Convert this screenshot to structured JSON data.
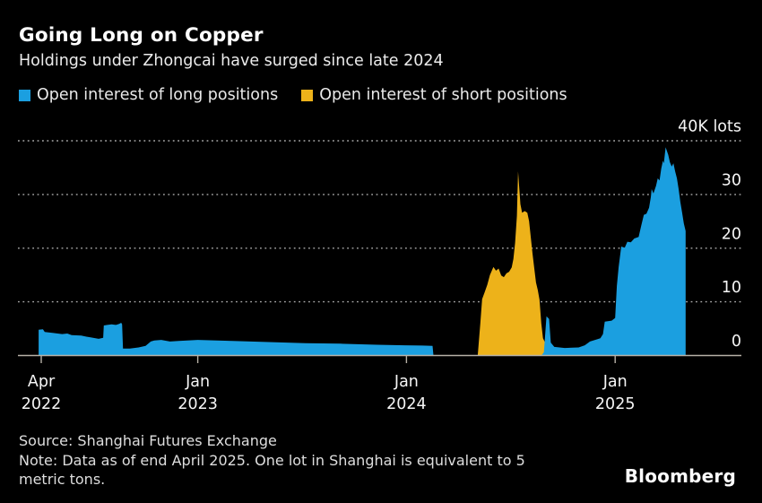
{
  "header": {
    "title": "Going Long on Copper",
    "subtitle": "Holdings under Zhongcai have surged since late 2024"
  },
  "legend": [
    {
      "label": "Open interest of long positions",
      "color": "#1b9fe0"
    },
    {
      "label": "Open interest of short positions",
      "color": "#edb21a"
    }
  ],
  "footer": {
    "source": "Source: Shanghai Futures Exchange",
    "note_line1": "Note: Data as of end April 2025. One lot in Shanghai is equivalent to 5",
    "note_line2": "metric tons.",
    "brand": "Bloomberg"
  },
  "colors": {
    "background": "#000000",
    "long": "#1b9fe0",
    "short": "#edb21a",
    "grid": "#a9a9a9",
    "axis": "#b7b1a7",
    "label_text": "#f5f5f5"
  },
  "chart_data": {
    "type": "area",
    "title": "Going Long on Copper",
    "subtitle": "Holdings under Zhongcai have surged since late 2024",
    "unit": "K lots",
    "x_unit": "months since Apr 2022",
    "ylim": [
      0,
      40
    ],
    "grid": "horizontal-dotted",
    "legend_position": "top-left",
    "y_ticks": [
      {
        "v": 40,
        "label": "40K lots"
      },
      {
        "v": 30,
        "label": "30"
      },
      {
        "v": 20,
        "label": "20"
      },
      {
        "v": 10,
        "label": "10"
      },
      {
        "v": 0,
        "label": "0"
      }
    ],
    "x_ticks": [
      {
        "m": 0,
        "line1": "Apr",
        "line2": "2022"
      },
      {
        "m": 9,
        "line1": "Jan",
        "line2": "2023"
      },
      {
        "m": 21,
        "line1": "Jan",
        "line2": "2024"
      },
      {
        "m": 33,
        "line1": "Jan",
        "line2": "2025"
      }
    ],
    "series": [
      {
        "name": "Open interest of long positions",
        "color": "#1b9fe0",
        "points": [
          [
            -0.15,
            0
          ],
          [
            -0.15,
            4.8
          ],
          [
            0.1,
            4.9
          ],
          [
            0.2,
            4.4
          ],
          [
            0.7,
            4.2
          ],
          [
            1.2,
            4.0
          ],
          [
            1.5,
            4.1
          ],
          [
            1.75,
            3.8
          ],
          [
            2.3,
            3.7
          ],
          [
            2.6,
            3.5
          ],
          [
            2.8,
            3.4
          ],
          [
            3.3,
            3.1
          ],
          [
            3.45,
            3.2
          ],
          [
            3.56,
            3.3
          ],
          [
            3.6,
            5.6
          ],
          [
            3.8,
            5.7
          ],
          [
            4.05,
            5.8
          ],
          [
            4.3,
            5.7
          ],
          [
            4.48,
            5.9
          ],
          [
            4.6,
            6.1
          ],
          [
            4.65,
            5.8
          ],
          [
            4.7,
            1.3
          ],
          [
            5.1,
            1.3
          ],
          [
            5.6,
            1.5
          ],
          [
            6.0,
            1.8
          ],
          [
            6.3,
            2.6
          ],
          [
            6.5,
            2.8
          ],
          [
            6.9,
            2.9
          ],
          [
            7.4,
            2.6
          ],
          [
            7.9,
            2.7
          ],
          [
            9.0,
            2.9
          ],
          [
            11.0,
            2.7
          ],
          [
            13.1,
            2.5
          ],
          [
            15.2,
            2.3
          ],
          [
            17.2,
            2.2
          ],
          [
            19.3,
            2.0
          ],
          [
            20.9,
            1.9
          ],
          [
            21.9,
            1.85
          ],
          [
            22.5,
            1.8
          ],
          [
            22.55,
            0
          ],
          [
            28.76,
            0
          ],
          [
            28.9,
            0.6
          ],
          [
            29.05,
            7.3
          ],
          [
            29.2,
            6.8
          ],
          [
            29.3,
            2.4
          ],
          [
            29.5,
            1.6
          ],
          [
            30.1,
            1.4
          ],
          [
            30.9,
            1.5
          ],
          [
            31.25,
            1.9
          ],
          [
            31.55,
            2.6
          ],
          [
            31.95,
            3.0
          ],
          [
            32.15,
            3.2
          ],
          [
            32.3,
            4.0
          ],
          [
            32.4,
            6.3
          ],
          [
            32.8,
            6.5
          ],
          [
            33.0,
            7.0
          ],
          [
            33.1,
            13.0
          ],
          [
            33.2,
            16.5
          ],
          [
            33.35,
            20.3
          ],
          [
            33.55,
            20.1
          ],
          [
            33.7,
            21.2
          ],
          [
            33.9,
            21.1
          ],
          [
            34.1,
            21.8
          ],
          [
            34.35,
            22.1
          ],
          [
            34.5,
            24.2
          ],
          [
            34.65,
            26.2
          ],
          [
            34.8,
            26.4
          ],
          [
            34.95,
            27.5
          ],
          [
            35.05,
            29.5
          ],
          [
            35.1,
            31.0
          ],
          [
            35.2,
            30.2
          ],
          [
            35.35,
            31.6
          ],
          [
            35.45,
            33.0
          ],
          [
            35.55,
            32.6
          ],
          [
            35.65,
            34.8
          ],
          [
            35.75,
            36.3
          ],
          [
            35.8,
            35.8
          ],
          [
            35.9,
            38.8
          ],
          [
            36.05,
            37.4
          ],
          [
            36.15,
            36.0
          ],
          [
            36.25,
            35.2
          ],
          [
            36.35,
            35.8
          ],
          [
            36.45,
            34.3
          ],
          [
            36.55,
            33.0
          ],
          [
            36.65,
            31.0
          ],
          [
            36.75,
            28.6
          ],
          [
            36.85,
            26.6
          ],
          [
            36.95,
            24.6
          ],
          [
            37.05,
            23.2
          ],
          [
            37.05,
            0
          ]
        ]
      },
      {
        "name": "Open interest of short positions",
        "color": "#edb21a",
        "points": [
          [
            25.1,
            0
          ],
          [
            25.25,
            6.0
          ],
          [
            25.35,
            10.5
          ],
          [
            25.5,
            11.8
          ],
          [
            25.65,
            13.2
          ],
          [
            25.8,
            15.0
          ],
          [
            26.0,
            16.5
          ],
          [
            26.15,
            15.8
          ],
          [
            26.3,
            16.2
          ],
          [
            26.45,
            14.9
          ],
          [
            26.6,
            14.6
          ],
          [
            26.75,
            15.3
          ],
          [
            26.9,
            15.6
          ],
          [
            27.05,
            16.4
          ],
          [
            27.15,
            18.0
          ],
          [
            27.25,
            21.0
          ],
          [
            27.35,
            26.0
          ],
          [
            27.42,
            34.3
          ],
          [
            27.55,
            28.2
          ],
          [
            27.65,
            26.6
          ],
          [
            27.8,
            26.9
          ],
          [
            27.95,
            26.6
          ],
          [
            28.05,
            25.0
          ],
          [
            28.15,
            22.0
          ],
          [
            28.25,
            19.0
          ],
          [
            28.35,
            16.2
          ],
          [
            28.45,
            13.6
          ],
          [
            28.55,
            12.2
          ],
          [
            28.65,
            10.4
          ],
          [
            28.75,
            6.0
          ],
          [
            28.85,
            3.2
          ],
          [
            29.0,
            2.2
          ],
          [
            29.2,
            1.6
          ],
          [
            29.35,
            0.8
          ],
          [
            29.5,
            0
          ]
        ]
      }
    ]
  }
}
